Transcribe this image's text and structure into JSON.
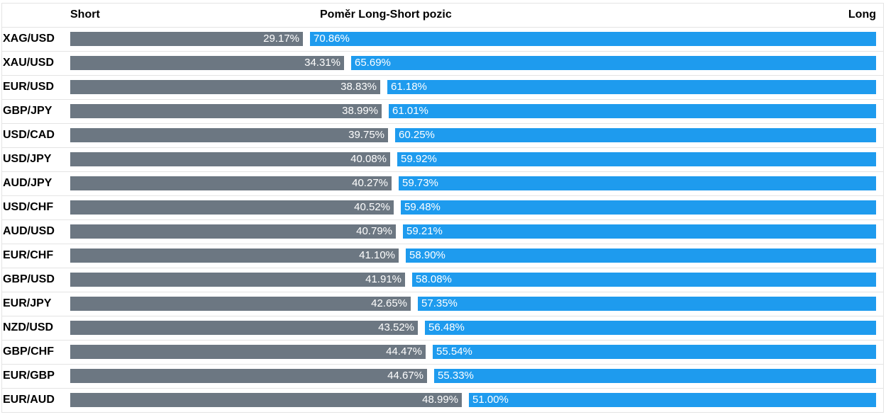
{
  "chart_data": {
    "type": "bar",
    "orientation": "horizontal",
    "stacked": true,
    "title": "Poměr Long-Short pozic",
    "left_label": "Short",
    "right_label": "Long",
    "value_unit": "%",
    "colors": {
      "short": "#6c7782",
      "long": "#1e9bee"
    },
    "grid": true,
    "categories": [
      "XAG/USD",
      "XAU/USD",
      "EUR/USD",
      "GBP/JPY",
      "USD/CAD",
      "USD/JPY",
      "AUD/JPY",
      "USD/CHF",
      "AUD/USD",
      "EUR/CHF",
      "GBP/USD",
      "EUR/JPY",
      "NZD/USD",
      "GBP/CHF",
      "EUR/GBP",
      "EUR/AUD"
    ],
    "series": [
      {
        "name": "Short",
        "values": [
          29.17,
          34.31,
          38.83,
          38.99,
          39.75,
          40.08,
          40.27,
          40.52,
          40.79,
          41.1,
          41.91,
          42.65,
          43.52,
          44.47,
          44.67,
          48.99
        ],
        "labels": [
          "29.17%",
          "34.31%",
          "38.83%",
          "38.99%",
          "39.75%",
          "40.08%",
          "40.27%",
          "40.52%",
          "40.79%",
          "41.10%",
          "41.91%",
          "42.65%",
          "43.52%",
          "44.47%",
          "44.67%",
          "48.99%"
        ]
      },
      {
        "name": "Long",
        "values": [
          70.86,
          65.69,
          61.18,
          61.01,
          60.25,
          59.92,
          59.73,
          59.48,
          59.21,
          58.9,
          58.08,
          57.35,
          56.48,
          55.54,
          55.33,
          51.0
        ],
        "labels": [
          "70.86%",
          "65.69%",
          "61.18%",
          "61.01%",
          "60.25%",
          "59.92%",
          "59.73%",
          "59.48%",
          "59.21%",
          "58.90%",
          "58.08%",
          "57.35%",
          "56.48%",
          "55.54%",
          "55.33%",
          "51.00%"
        ]
      }
    ]
  }
}
